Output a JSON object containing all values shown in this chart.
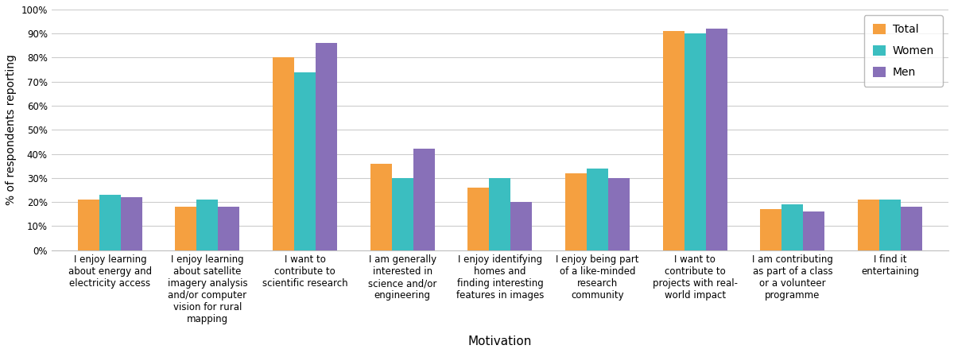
{
  "categories": [
    "I enjoy learning\nabout energy and\nelectricity access",
    "I enjoy learning\nabout satellite\nimagery analysis\nand/or computer\nvision for rural\nmapping",
    "I want to\ncontribute to\nscientific research",
    "I am generally\ninterested in\nscience and/or\nengineering",
    "I enjoy identifying\nhomes and\nfinding interesting\nfeatures in images",
    "I enjoy being part\nof a like-minded\nresearch\ncommunity",
    "I want to\ncontribute to\nprojects with real-\nworld impact",
    "I am contributing\nas part of a class\nor a volunteer\nprogramme",
    "I find it\nentertaining"
  ],
  "total": [
    21,
    18,
    80,
    36,
    26,
    32,
    91,
    17,
    21
  ],
  "women": [
    23,
    21,
    74,
    30,
    30,
    34,
    90,
    19,
    21
  ],
  "men": [
    22,
    18,
    86,
    42,
    20,
    30,
    92,
    16,
    18
  ],
  "colors": {
    "total": "#F5A040",
    "women": "#3BBEC0",
    "men": "#8870B8"
  },
  "ylabel": "% of respondents reporting",
  "xlabel": "Motivation",
  "ylim": [
    0,
    100
  ],
  "yticks": [
    0,
    10,
    20,
    30,
    40,
    50,
    60,
    70,
    80,
    90,
    100
  ],
  "ytick_labels": [
    "0%",
    "10%",
    "20%",
    "30%",
    "40%",
    "50%",
    "60%",
    "70%",
    "80%",
    "90%",
    "100%"
  ],
  "legend_labels": [
    "Total",
    "Women",
    "Men"
  ],
  "bar_width": 0.22,
  "background_color": "#ffffff",
  "grid_color": "#cccccc",
  "label_fontsize": 10,
  "tick_fontsize": 8.5,
  "xlabel_fontsize": 11
}
